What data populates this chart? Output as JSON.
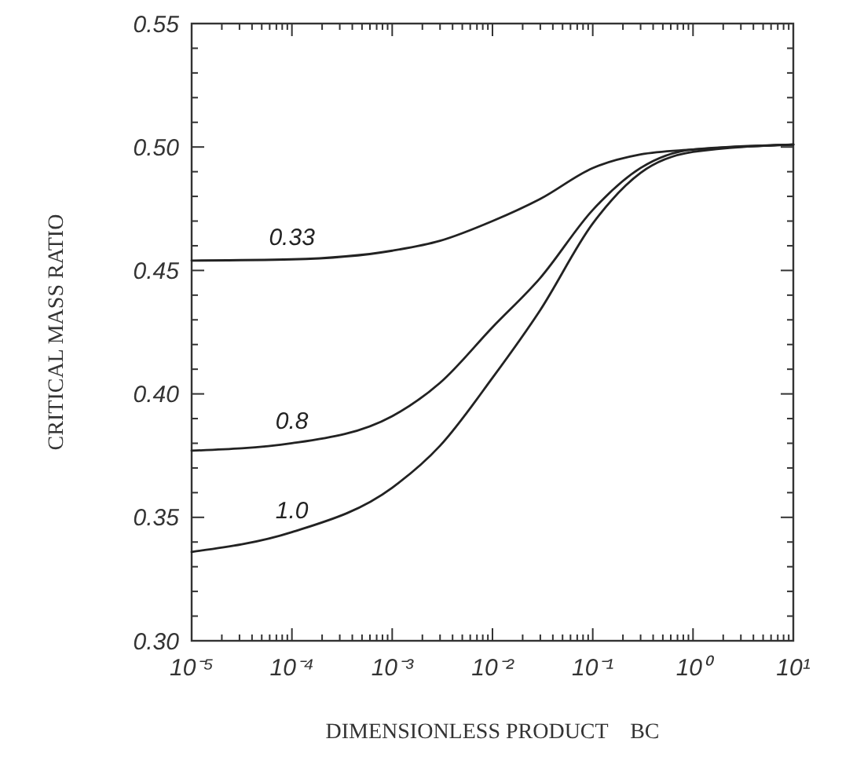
{
  "chart_data": {
    "type": "line",
    "xlabel": "DIMENSIONLESS PRODUCT    BC",
    "ylabel": "CRITICAL MASS RATIO",
    "log": "x",
    "grid": false,
    "legend": false,
    "marker": "none",
    "line_style": "solid",
    "xlim": [
      1e-05,
      10
    ],
    "ylim": [
      0.3,
      0.55
    ],
    "xticks": [
      {
        "value": 1e-05,
        "label": "10⁻⁵"
      },
      {
        "value": 0.0001,
        "label": "10⁻⁴"
      },
      {
        "value": 0.001,
        "label": "10⁻³"
      },
      {
        "value": 0.01,
        "label": "10⁻²"
      },
      {
        "value": 0.1,
        "label": "10⁻¹"
      },
      {
        "value": 1,
        "label": "10⁰"
      },
      {
        "value": 10,
        "label": "10¹"
      },
      {
        "value": 2e-05,
        "label": null
      },
      {
        "value": 3e-05,
        "label": null
      },
      {
        "value": 4e-05,
        "label": null
      },
      {
        "value": 5e-05,
        "label": null
      },
      {
        "value": 6e-05,
        "label": null
      },
      {
        "value": 7e-05,
        "label": null
      },
      {
        "value": 8e-05,
        "label": null
      },
      {
        "value": 9e-05,
        "label": null
      },
      {
        "value": 0.0002,
        "label": null
      },
      {
        "value": 0.0003,
        "label": null
      },
      {
        "value": 0.0004,
        "label": null
      },
      {
        "value": 0.0005,
        "label": null
      },
      {
        "value": 0.0006,
        "label": null
      },
      {
        "value": 0.0007,
        "label": null
      },
      {
        "value": 0.0008,
        "label": null
      },
      {
        "value": 0.0009,
        "label": null
      },
      {
        "value": 0.002,
        "label": null
      },
      {
        "value": 0.003,
        "label": null
      },
      {
        "value": 0.004,
        "label": null
      },
      {
        "value": 0.005,
        "label": null
      },
      {
        "value": 0.006,
        "label": null
      },
      {
        "value": 0.007,
        "label": null
      },
      {
        "value": 0.008,
        "label": null
      },
      {
        "value": 0.009,
        "label": null
      },
      {
        "value": 0.02,
        "label": null
      },
      {
        "value": 0.03,
        "label": null
      },
      {
        "value": 0.04,
        "label": null
      },
      {
        "value": 0.05,
        "label": null
      },
      {
        "value": 0.06,
        "label": null
      },
      {
        "value": 0.07,
        "label": null
      },
      {
        "value": 0.08,
        "label": null
      },
      {
        "value": 0.09,
        "label": null
      },
      {
        "value": 0.2,
        "label": null
      },
      {
        "value": 0.3,
        "label": null
      },
      {
        "value": 0.4,
        "label": null
      },
      {
        "value": 0.5,
        "label": null
      },
      {
        "value": 0.6,
        "label": null
      },
      {
        "value": 0.7,
        "label": null
      },
      {
        "value": 0.8,
        "label": null
      },
      {
        "value": 0.9,
        "label": null
      },
      {
        "value": 2,
        "label": null
      },
      {
        "value": 3,
        "label": null
      },
      {
        "value": 4,
        "label": null
      },
      {
        "value": 5,
        "label": null
      },
      {
        "value": 6,
        "label": null
      },
      {
        "value": 7,
        "label": null
      },
      {
        "value": 8,
        "label": null
      },
      {
        "value": 9,
        "label": null
      }
    ],
    "yticks": [
      {
        "value": 0.3,
        "label": "0.30"
      },
      {
        "value": 0.35,
        "label": "0.35"
      },
      {
        "value": 0.4,
        "label": "0.40"
      },
      {
        "value": 0.45,
        "label": "0.45"
      },
      {
        "value": 0.5,
        "label": "0.50"
      },
      {
        "value": 0.55,
        "label": "0.55"
      },
      {
        "value": 0.31,
        "label": null
      },
      {
        "value": 0.32,
        "label": null
      },
      {
        "value": 0.33,
        "label": null
      },
      {
        "value": 0.34,
        "label": null
      },
      {
        "value": 0.36,
        "label": null
      },
      {
        "value": 0.37,
        "label": null
      },
      {
        "value": 0.38,
        "label": null
      },
      {
        "value": 0.39,
        "label": null
      },
      {
        "value": 0.41,
        "label": null
      },
      {
        "value": 0.42,
        "label": null
      },
      {
        "value": 0.43,
        "label": null
      },
      {
        "value": 0.44,
        "label": null
      },
      {
        "value": 0.46,
        "label": null
      },
      {
        "value": 0.47,
        "label": null
      },
      {
        "value": 0.48,
        "label": null
      },
      {
        "value": 0.49,
        "label": null
      },
      {
        "value": 0.51,
        "label": null
      },
      {
        "value": 0.52,
        "label": null
      },
      {
        "value": 0.53,
        "label": null
      },
      {
        "value": 0.54,
        "label": null
      }
    ],
    "x": [
      1e-05,
      0.0001,
      0.001,
      0.003,
      0.01,
      0.03,
      0.1,
      0.3,
      1,
      10
    ],
    "series": [
      {
        "name": "0.33",
        "color": "#222222",
        "values": [
          0.454,
          0.4545,
          0.458,
          0.462,
          0.47,
          0.479,
          0.4915,
          0.497,
          0.499,
          0.501
        ]
      },
      {
        "name": "0.8",
        "color": "#222222",
        "values": [
          0.377,
          0.38,
          0.391,
          0.4045,
          0.427,
          0.447,
          0.4745,
          0.4915,
          0.499,
          0.501
        ]
      },
      {
        "name": "1.0",
        "color": "#222222",
        "values": [
          0.336,
          0.344,
          0.362,
          0.379,
          0.4065,
          0.434,
          0.469,
          0.4895,
          0.498,
          0.501
        ]
      }
    ]
  }
}
